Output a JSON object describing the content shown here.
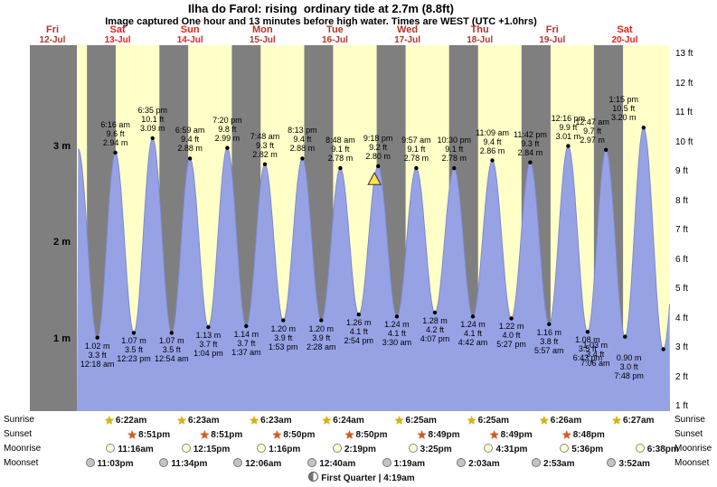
{
  "header": {
    "title": "Ilha do Farol: rising  ordinary tide at 2.7m (8.8ft)",
    "subtitle": "Image captured One hour and 13 minutes before high water. Times are WEST (UTC +1.0hrs)"
  },
  "chart_data": {
    "type": "area",
    "title": "Ilha do Farol: rising  ordinary tide at 2.7m (8.8ft)",
    "x_ticks": [
      {
        "name": "Fri",
        "date": "12-Jul",
        "day": 12,
        "weekend": false
      },
      {
        "name": "Sat",
        "date": "13-Jul",
        "day": 13,
        "weekend": true
      },
      {
        "name": "Sun",
        "date": "14-Jul",
        "day": 14,
        "weekend": true
      },
      {
        "name": "Mon",
        "date": "15-Jul",
        "day": 15,
        "weekend": false
      },
      {
        "name": "Tue",
        "date": "16-Jul",
        "day": 16,
        "weekend": false
      },
      {
        "name": "Wed",
        "date": "17-Jul",
        "day": 17,
        "weekend": false
      },
      {
        "name": "Thu",
        "date": "18-Jul",
        "day": 18,
        "weekend": false
      },
      {
        "name": "Fri",
        "date": "19-Jul",
        "day": 19,
        "weekend": false
      },
      {
        "name": "Sat",
        "date": "20-Jul",
        "day": 20,
        "weekend": true
      }
    ],
    "y_left_ticks": [
      "3 m",
      "2 m",
      "1 m"
    ],
    "y_right_ticks": [
      "13 ft",
      "12 ft",
      "11 ft",
      "10 ft",
      "9 ft",
      "8 ft",
      "7 ft",
      "6 ft",
      "5 ft",
      "4 ft",
      "3 ft",
      "2 ft",
      "1 ft"
    ],
    "high_tides": [
      {
        "day": 13,
        "time": "6:16 am",
        "ft_label": "9.6 ft",
        "m_label": "2.94 m",
        "height_m": 2.94
      },
      {
        "day": 13,
        "time": "6:35 pm",
        "ft_label": "10.1 ft",
        "m_label": "3.09 m",
        "height_m": 3.09
      },
      {
        "day": 14,
        "time": "6:59 am",
        "ft_label": "9.4 ft",
        "m_label": "2.88 m",
        "height_m": 2.88
      },
      {
        "day": 14,
        "time": "7:20 pm",
        "ft_label": "9.8 ft",
        "m_label": "2.99 m",
        "height_m": 2.99
      },
      {
        "day": 15,
        "time": "7:48 am",
        "ft_label": "9.3 ft",
        "m_label": "2.82 m",
        "height_m": 2.82
      },
      {
        "day": 15,
        "time": "8:13 pm",
        "ft_label": "9.4 ft",
        "m_label": "2.88 m",
        "height_m": 2.88
      },
      {
        "day": 16,
        "time": "8:48 am",
        "ft_label": "9.1 ft",
        "m_label": "2.78 m",
        "height_m": 2.78
      },
      {
        "day": 16,
        "time": "9:18 pm",
        "ft_label": "9.2 ft",
        "m_label": "2.80 m",
        "height_m": 2.8
      },
      {
        "day": 17,
        "time": "9:57 am",
        "ft_label": "9.1 ft",
        "m_label": "2.78 m",
        "height_m": 2.78
      },
      {
        "day": 17,
        "time": "10:30 pm",
        "ft_label": "9.1 ft",
        "m_label": "2.78 m",
        "height_m": 2.78
      },
      {
        "day": 18,
        "time": "11:09 am",
        "ft_label": "9.4 ft",
        "m_label": "2.86 m",
        "height_m": 2.86
      },
      {
        "day": 18,
        "time": "11:42 pm",
        "ft_label": "9.3 ft",
        "m_label": "2.84 m",
        "height_m": 2.84
      },
      {
        "day": 19,
        "time": "12:16 pm",
        "ft_label": "9.9 ft",
        "m_label": "3.01 m",
        "height_m": 3.01
      },
      {
        "day": 20,
        "time": "12:47 am",
        "ft_label": "9.7 ft",
        "m_label": "2.97 m",
        "height_m": 2.97
      },
      {
        "day": 20,
        "time": "1:15 pm",
        "ft_label": "10.5 ft",
        "m_label": "3.20 m",
        "height_m": 3.2
      }
    ],
    "low_tides": [
      {
        "day": 13,
        "time": "12:18 am",
        "ft_label": "3.3 ft",
        "m_label": "1.02 m",
        "height_m": 1.02
      },
      {
        "day": 13,
        "time": "12:23 pm",
        "ft_label": "3.5 ft",
        "m_label": "1.07 m",
        "height_m": 1.07
      },
      {
        "day": 14,
        "time": "12:54 am",
        "ft_label": "3.5 ft",
        "m_label": "1.07 m",
        "height_m": 1.07
      },
      {
        "day": 14,
        "time": "1:04 pm",
        "ft_label": "3.7 ft",
        "m_label": "1.13 m",
        "height_m": 1.13
      },
      {
        "day": 15,
        "time": "1:37 am",
        "ft_label": "3.7 ft",
        "m_label": "1.14 m",
        "height_m": 1.14
      },
      {
        "day": 15,
        "time": "1:53 pm",
        "ft_label": "3.9 ft",
        "m_label": "1.20 m",
        "height_m": 1.2
      },
      {
        "day": 16,
        "time": "2:28 am",
        "ft_label": "3.9 ft",
        "m_label": "1.20 m",
        "height_m": 1.2
      },
      {
        "day": 16,
        "time": "2:54 pm",
        "ft_label": "4.1 ft",
        "m_label": "1.26 m",
        "height_m": 1.26
      },
      {
        "day": 17,
        "time": "3:30 am",
        "ft_label": "4.1 ft",
        "m_label": "1.24 m",
        "height_m": 1.24
      },
      {
        "day": 17,
        "time": "4:07 pm",
        "ft_label": "4.2 ft",
        "m_label": "1.28 m",
        "height_m": 1.28
      },
      {
        "day": 18,
        "time": "4:42 am",
        "ft_label": "4.1 ft",
        "m_label": "1.24 m",
        "height_m": 1.24
      },
      {
        "day": 18,
        "time": "5:27 pm",
        "ft_label": "4.0 ft",
        "m_label": "1.22 m",
        "height_m": 1.22
      },
      {
        "day": 19,
        "time": "5:57 am",
        "ft_label": "3.8 ft",
        "m_label": "1.16 m",
        "height_m": 1.16
      },
      {
        "day": 19,
        "time": "6:43 pm",
        "ft_label": "3.5 ft",
        "m_label": "1.08 m",
        "height_m": 1.08
      },
      {
        "day": 20,
        "time": "7:06 am",
        "ft_label": "3.4 ft",
        "m_label": "1.03 m",
        "height_m": 1.03
      },
      {
        "day": 20,
        "time": "7:48 pm",
        "ft_label": "3.0 ft",
        "m_label": "0.90 m",
        "height_m": 0.9
      }
    ],
    "current_time_marker": {
      "day": 16,
      "time_hours": 20.08
    }
  },
  "sun_moon": {
    "rows": [
      {
        "label": "Sunrise",
        "entries": [
          {
            "day": 13,
            "time": "6:22am"
          },
          {
            "day": 14,
            "time": "6:23am"
          },
          {
            "day": 15,
            "time": "6:23am"
          },
          {
            "day": 16,
            "time": "6:24am"
          },
          {
            "day": 17,
            "time": "6:25am"
          },
          {
            "day": 18,
            "time": "6:25am"
          },
          {
            "day": 19,
            "time": "6:26am"
          },
          {
            "day": 20,
            "time": "6:27am"
          }
        ]
      },
      {
        "label": "Sunset",
        "entries": [
          {
            "day": 13,
            "time": "8:51pm"
          },
          {
            "day": 14,
            "time": "8:51pm"
          },
          {
            "day": 15,
            "time": "8:50pm"
          },
          {
            "day": 16,
            "time": "8:50pm"
          },
          {
            "day": 17,
            "time": "8:49pm"
          },
          {
            "day": 18,
            "time": "8:49pm"
          },
          {
            "day": 19,
            "time": "8:48pm"
          }
        ]
      },
      {
        "label": "Moonrise",
        "entries": [
          {
            "day": 13,
            "time": "11:16am"
          },
          {
            "day": 14,
            "time": "12:15pm"
          },
          {
            "day": 15,
            "time": "1:16pm"
          },
          {
            "day": 16,
            "time": "2:19pm"
          },
          {
            "day": 17,
            "time": "3:25pm"
          },
          {
            "day": 18,
            "time": "4:31pm"
          },
          {
            "day": 19,
            "time": "5:36pm"
          },
          {
            "day": 20,
            "time": "6:38pm"
          }
        ]
      },
      {
        "label": "Moonset",
        "entries": [
          {
            "day": 12,
            "time": "11:03pm"
          },
          {
            "day": 13,
            "time": "11:34pm"
          },
          {
            "day": 15,
            "time": "12:06am"
          },
          {
            "day": 16,
            "time": "12:40am"
          },
          {
            "day": 17,
            "time": "1:19am"
          },
          {
            "day": 18,
            "time": "2:03am"
          },
          {
            "day": 19,
            "time": "2:53am"
          },
          {
            "day": 20,
            "time": "3:52am"
          }
        ]
      }
    ],
    "moon_phase": "First Quarter | 4:19am"
  }
}
